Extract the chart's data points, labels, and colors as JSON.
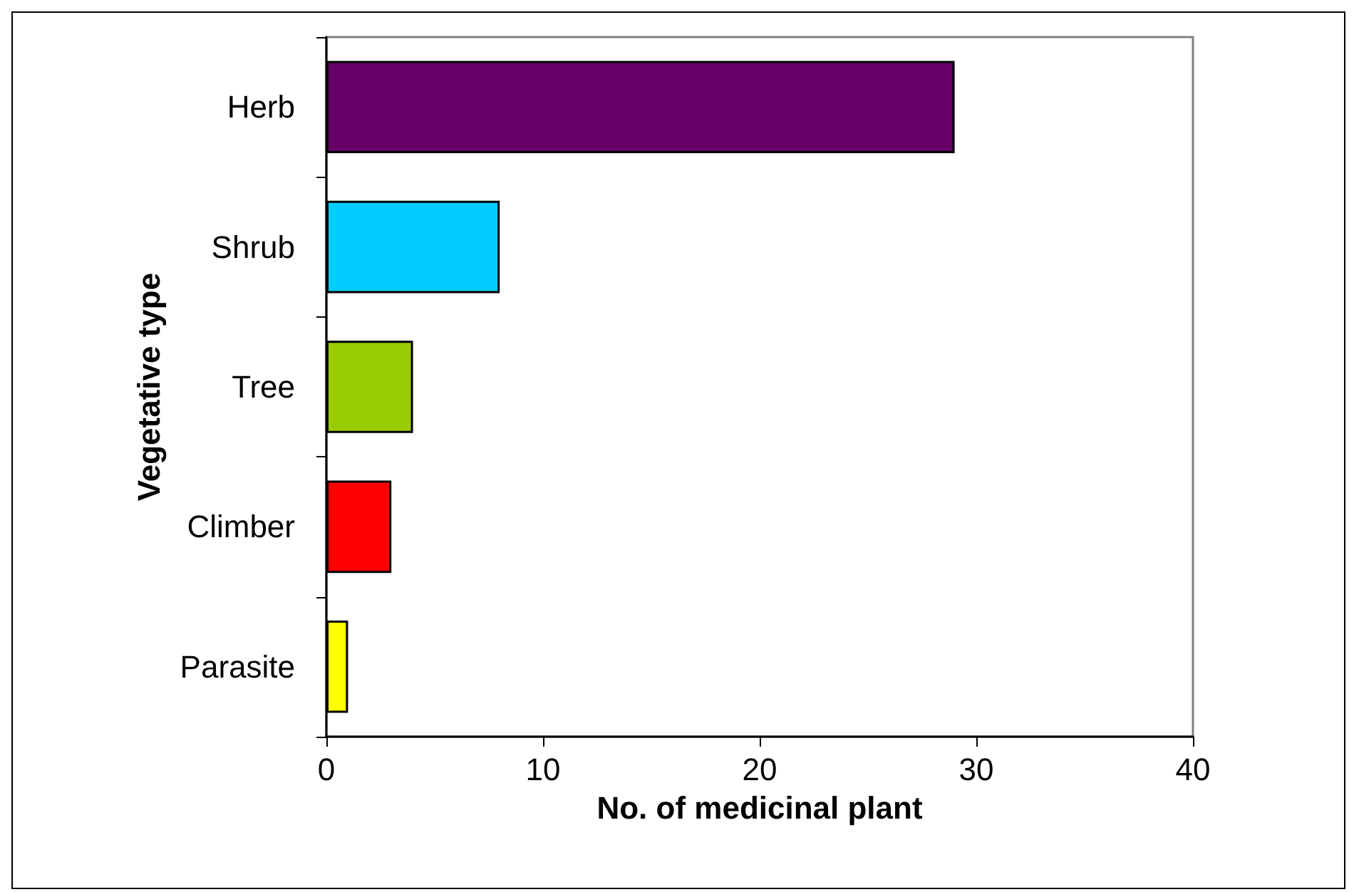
{
  "chart_data": {
    "type": "bar",
    "orientation": "horizontal",
    "xlabel": "No. of medicinal plant",
    "ylabel": "Vegetative type",
    "categories": [
      "Herb",
      "Shrub",
      "Tree",
      "Climber",
      "Parasite"
    ],
    "values": [
      29,
      8,
      4,
      3,
      1
    ],
    "colors": [
      "#660066",
      "#00ccff",
      "#99cc00",
      "#ff0000",
      "#ffff00"
    ],
    "xlim": [
      0,
      40
    ],
    "xticks": [
      0,
      10,
      20,
      30,
      40
    ],
    "grid": false
  }
}
